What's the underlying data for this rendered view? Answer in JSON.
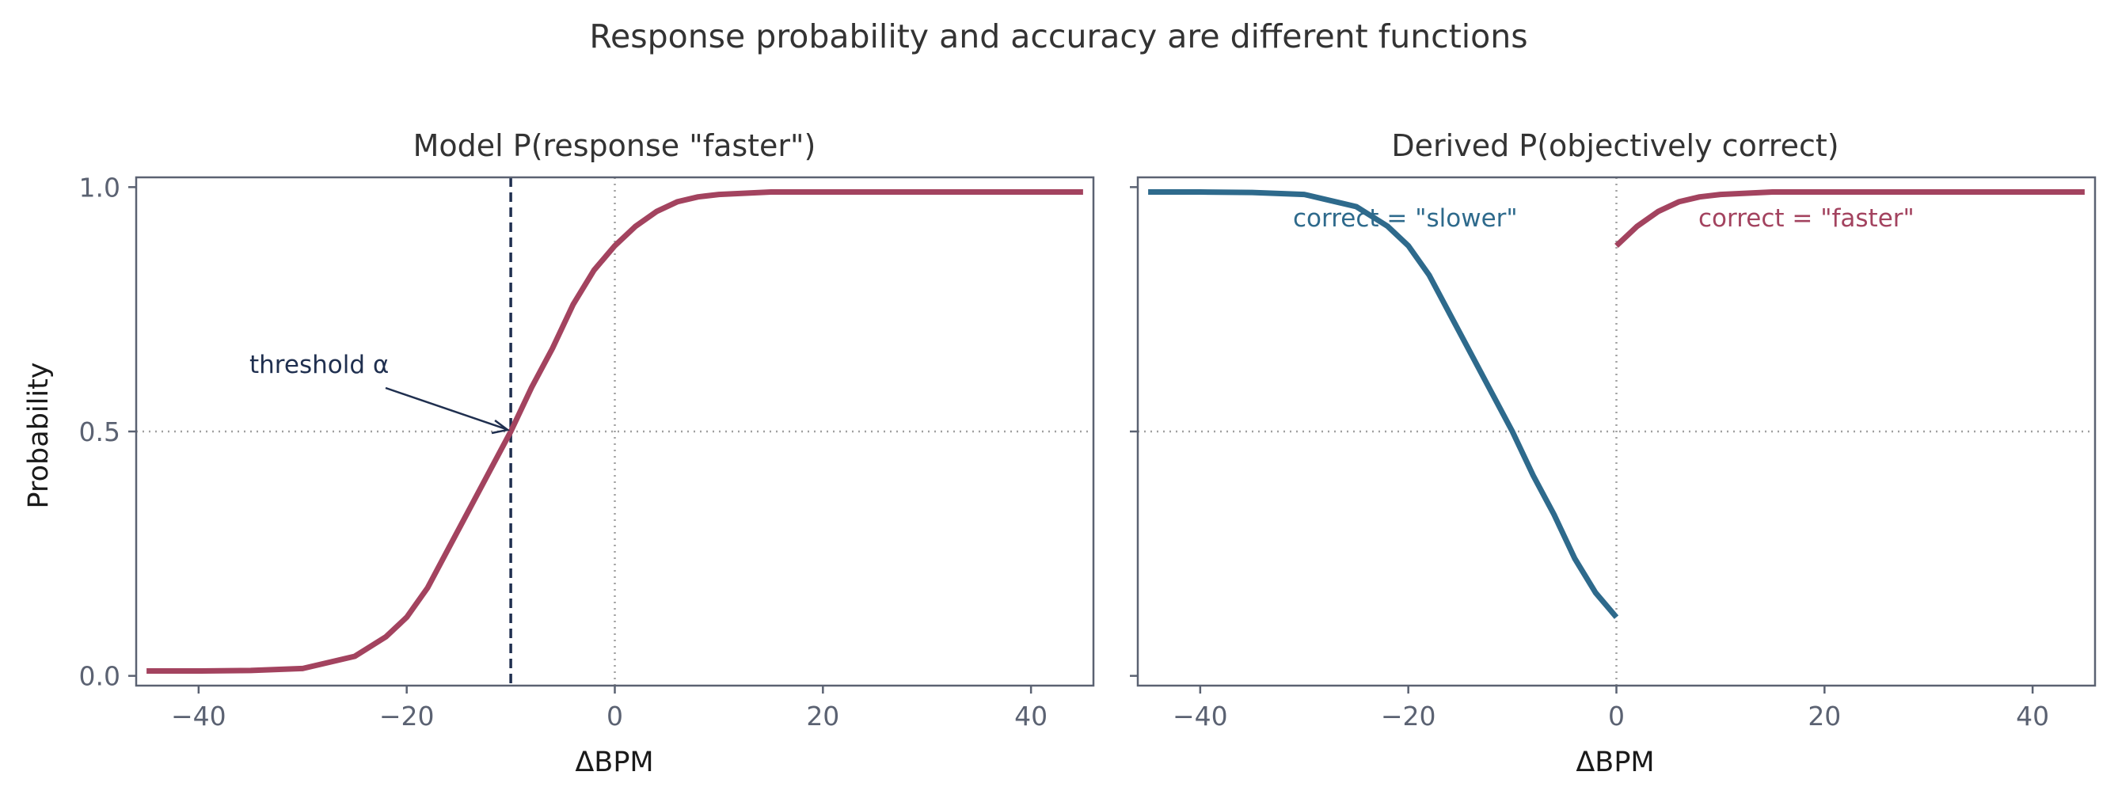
{
  "figure": {
    "suptitle": "Response probability and accuracy are different functions"
  },
  "chart_data": [
    {
      "type": "line",
      "title": "Model P(response \"faster\")",
      "xlabel": "ΔBPM",
      "ylabel": "Probability",
      "xlim": [
        -46,
        46
      ],
      "ylim": [
        -0.02,
        1.02
      ],
      "xticks": [
        -40,
        -20,
        0,
        20,
        40
      ],
      "xtick_labels": [
        "−40",
        "−20",
        "0",
        "20",
        "40"
      ],
      "yticks": [
        0.0,
        0.5,
        1.0
      ],
      "ytick_labels": [
        "0.0",
        "0.5",
        "1.0"
      ],
      "grid": false,
      "reference_lines": {
        "vertical_dotted_x": 0,
        "horizontal_dotted_y": 0.5
      },
      "threshold": {
        "x": -10,
        "style": "dashed",
        "color": "#1f2f4f"
      },
      "annotation": {
        "text": "threshold α",
        "points_to": [
          -10,
          0.5
        ]
      },
      "series": [
        {
          "color": "#a3435f",
          "x": [
            -45,
            -40,
            -35,
            -30,
            -25,
            -22,
            -20,
            -18,
            -16,
            -14,
            -12,
            -10,
            -8,
            -6,
            -4,
            -2,
            0,
            2,
            4,
            6,
            8,
            10,
            15,
            20,
            30,
            45
          ],
          "y": [
            0.01,
            0.01,
            0.011,
            0.015,
            0.04,
            0.08,
            0.12,
            0.18,
            0.26,
            0.34,
            0.42,
            0.5,
            0.59,
            0.67,
            0.76,
            0.83,
            0.88,
            0.92,
            0.95,
            0.97,
            0.98,
            0.985,
            0.99,
            0.99,
            0.99,
            0.99
          ]
        }
      ]
    },
    {
      "type": "line",
      "title": "Derived P(objectively correct)",
      "xlabel": "ΔBPM",
      "ylabel": "",
      "xlim": [
        -46,
        46
      ],
      "ylim": [
        -0.02,
        1.02
      ],
      "xticks": [
        -40,
        -20,
        0,
        20,
        40
      ],
      "xtick_labels": [
        "−40",
        "−20",
        "0",
        "20",
        "40"
      ],
      "yticks": [
        0.0,
        0.5,
        1.0
      ],
      "grid": false,
      "reference_lines": {
        "vertical_dotted_x": 0,
        "horizontal_dotted_y": 0.5
      },
      "series": [
        {
          "label": "correct = \"slower\"",
          "color": "#2e6a8c",
          "x": [
            -45,
            -40,
            -35,
            -30,
            -25,
            -22,
            -20,
            -18,
            -16,
            -14,
            -12,
            -10,
            -8,
            -6,
            -4,
            -2,
            0
          ],
          "y": [
            0.99,
            0.99,
            0.989,
            0.985,
            0.96,
            0.92,
            0.88,
            0.82,
            0.74,
            0.66,
            0.58,
            0.5,
            0.41,
            0.33,
            0.24,
            0.17,
            0.12
          ]
        },
        {
          "label": "correct = \"faster\"",
          "color": "#a3435f",
          "x": [
            0,
            2,
            4,
            6,
            8,
            10,
            15,
            20,
            30,
            45
          ],
          "y": [
            0.88,
            0.92,
            0.95,
            0.97,
            0.98,
            0.985,
            0.99,
            0.99,
            0.99,
            0.99
          ]
        }
      ]
    }
  ]
}
